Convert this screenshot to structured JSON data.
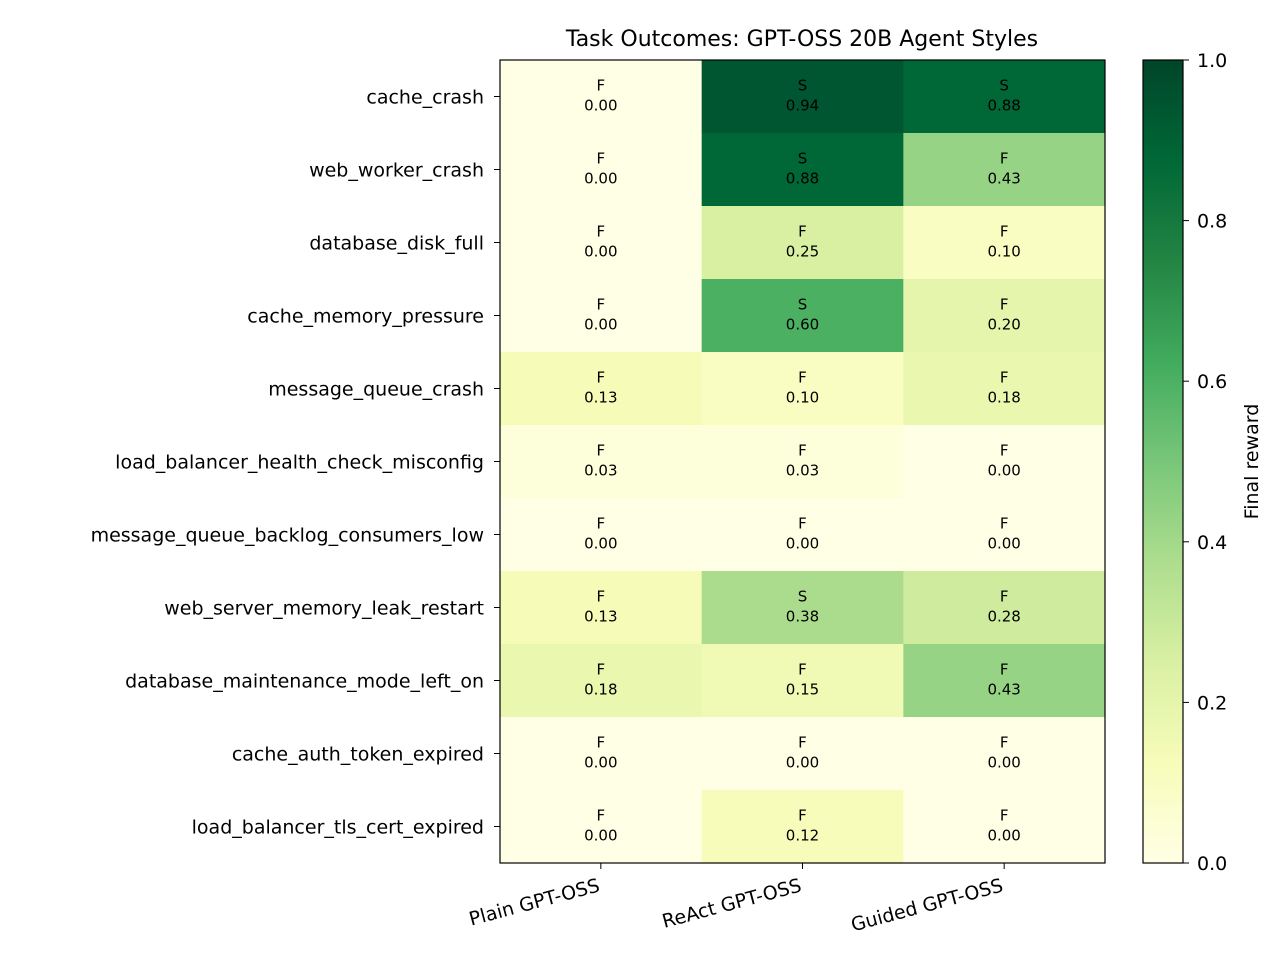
{
  "chart_data": {
    "type": "heatmap",
    "title": "Task Outcomes: GPT-OSS 20B Agent Styles",
    "columns": [
      "Plain GPT-OSS",
      "ReAct GPT-OSS",
      "Guided GPT-OSS"
    ],
    "rows": [
      "cache_crash",
      "web_worker_crash",
      "database_disk_full",
      "cache_memory_pressure",
      "message_queue_crash",
      "load_balancer_health_check_misconfig",
      "message_queue_backlog_consumers_low",
      "web_server_memory_leak_restart",
      "database_maintenance_mode_left_on",
      "cache_auth_token_expired",
      "load_balancer_tls_cert_expired"
    ],
    "values": [
      [
        0.0,
        0.94,
        0.88
      ],
      [
        0.0,
        0.88,
        0.43
      ],
      [
        0.0,
        0.25,
        0.1
      ],
      [
        0.0,
        0.6,
        0.2
      ],
      [
        0.13,
        0.1,
        0.18
      ],
      [
        0.03,
        0.03,
        0.0
      ],
      [
        0.0,
        0.0,
        0.0
      ],
      [
        0.13,
        0.38,
        0.28
      ],
      [
        0.18,
        0.15,
        0.43
      ],
      [
        0.0,
        0.0,
        0.0
      ],
      [
        0.0,
        0.12,
        0.0
      ]
    ],
    "values_display": [
      [
        "0.00",
        "0.94",
        "0.88"
      ],
      [
        "0.00",
        "0.88",
        "0.43"
      ],
      [
        "0.00",
        "0.25",
        "0.10"
      ],
      [
        "0.00",
        "0.60",
        "0.20"
      ],
      [
        "0.13",
        "0.10",
        "0.18"
      ],
      [
        "0.03",
        "0.03",
        "0.00"
      ],
      [
        "0.00",
        "0.00",
        "0.00"
      ],
      [
        "0.13",
        "0.38",
        "0.28"
      ],
      [
        "0.18",
        "0.15",
        "0.43"
      ],
      [
        "0.00",
        "0.00",
        "0.00"
      ],
      [
        "0.00",
        "0.12",
        "0.00"
      ]
    ],
    "outcomes": [
      [
        "F",
        "S",
        "S"
      ],
      [
        "F",
        "S",
        "F"
      ],
      [
        "F",
        "F",
        "F"
      ],
      [
        "F",
        "S",
        "F"
      ],
      [
        "F",
        "F",
        "F"
      ],
      [
        "F",
        "F",
        "F"
      ],
      [
        "F",
        "F",
        "F"
      ],
      [
        "F",
        "S",
        "F"
      ],
      [
        "F",
        "F",
        "F"
      ],
      [
        "F",
        "F",
        "F"
      ],
      [
        "F",
        "F",
        "F"
      ]
    ],
    "colorbar": {
      "label": "Final reward",
      "range": [
        0.0,
        1.0
      ],
      "ticks": [
        "0.0",
        "0.2",
        "0.4",
        "0.6",
        "0.8",
        "1.0"
      ],
      "colormap": "YlGn",
      "colormap_stops": [
        "#ffffe5",
        "#f7fcb9",
        "#d9f0a3",
        "#addd8e",
        "#78c679",
        "#41ab5d",
        "#238443",
        "#006837",
        "#004529"
      ]
    }
  }
}
